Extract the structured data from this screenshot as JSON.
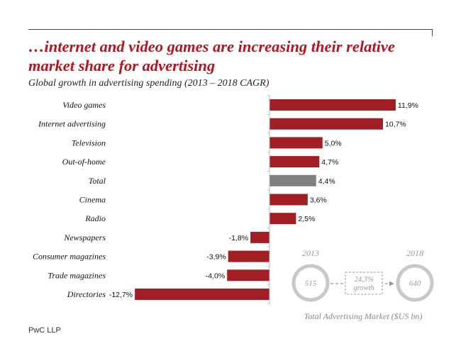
{
  "header": {
    "title": "…internet and video games are increasing their relative market share for advertising"
  },
  "footer": {
    "source": "PwC LLP"
  },
  "colors": {
    "accent": "#b5141e",
    "bar": "#a31d24",
    "total_bar": "#808080",
    "market_ring": "#c8c8c8"
  },
  "chart_data": {
    "type": "bar",
    "orientation": "horizontal",
    "title": "Global growth in advertising spending (2013 – 2018 CAGR)",
    "categories": [
      "Video games",
      "Internet advertising",
      "Television",
      "Out-of-home",
      "Total",
      "Cinema",
      "Radio",
      "Newspapers",
      "Consumer magazines",
      "Trade magazines",
      "Directories"
    ],
    "values": [
      11.9,
      10.7,
      5.0,
      4.7,
      4.4,
      3.6,
      2.5,
      -1.8,
      -3.9,
      -4.0,
      -12.7
    ],
    "value_labels": [
      "11,9%",
      "10,7%",
      "5,0%",
      "4,7%",
      "4,4%",
      "3,6%",
      "2,5%",
      "-1,8%",
      "-3,9%",
      "-4,0%",
      "-12,7%"
    ],
    "highlight_category": "Total",
    "unit": "%",
    "xlim": [
      -12.7,
      11.9
    ],
    "grid": false
  },
  "market": {
    "year_start": "2013",
    "year_end": "2018",
    "value_start": "515",
    "value_end": "640",
    "growth_value": "24,3%",
    "growth_label": "growth",
    "caption": "Total Advertising Market ($US bn)"
  }
}
